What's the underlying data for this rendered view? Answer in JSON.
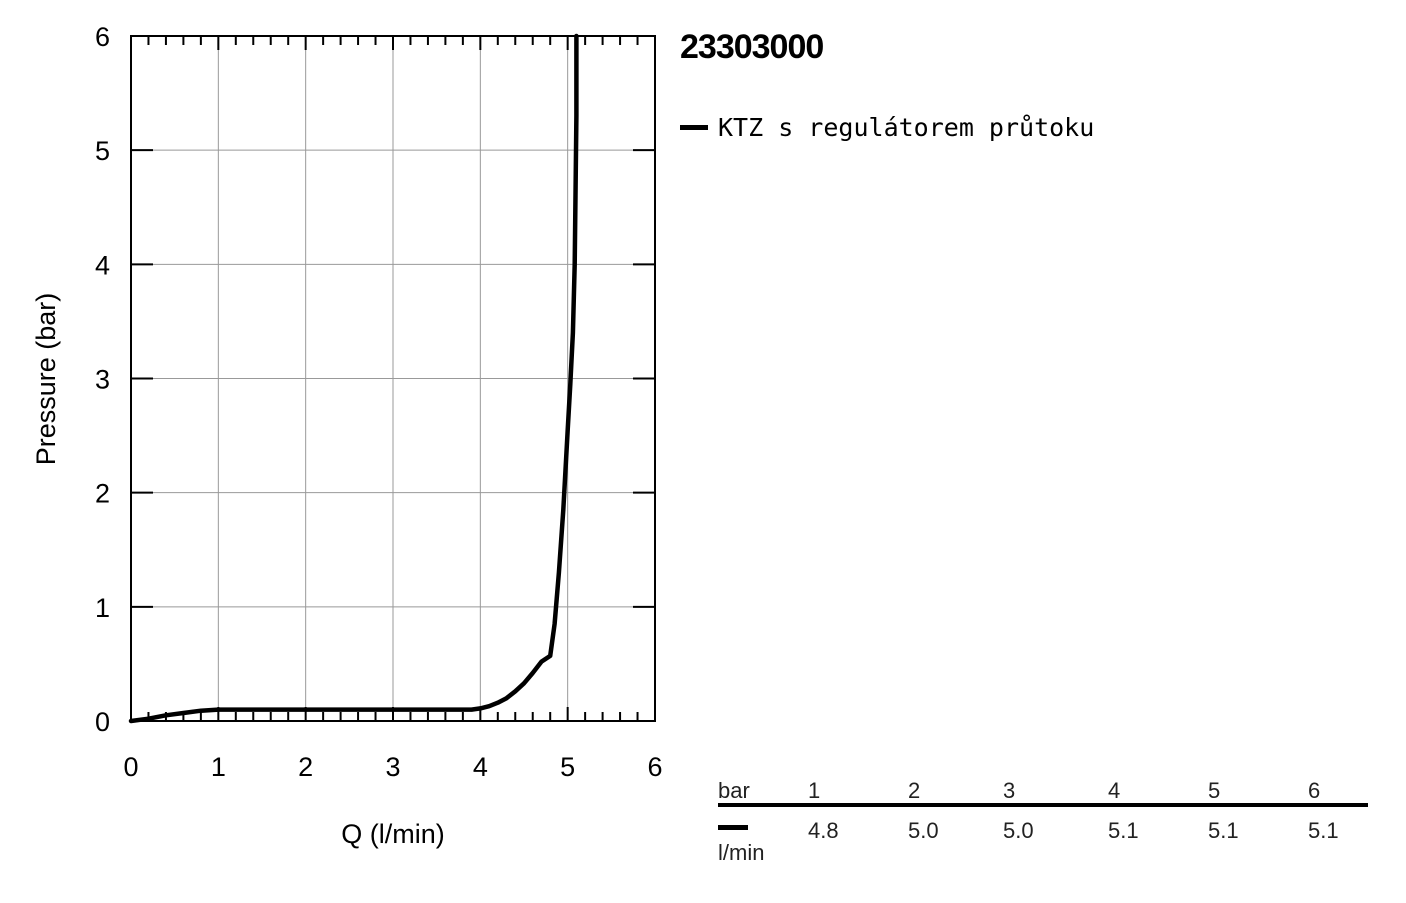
{
  "chart_data": {
    "type": "line",
    "xlabel": "Q (l/min)",
    "ylabel": "Pressure (bar)",
    "xlim": [
      0,
      6
    ],
    "ylim": [
      0,
      6
    ],
    "xticks": [
      "0",
      "1",
      "2",
      "3",
      "4",
      "5",
      "6"
    ],
    "yticks": [
      "0",
      "1",
      "2",
      "3",
      "4",
      "5",
      "6"
    ],
    "grid": true,
    "series": [
      {
        "name": "KTZ s regulátorem průtoku",
        "color": "#000000",
        "x": [
          0,
          0.2,
          0.4,
          0.6,
          0.8,
          1.0,
          2.0,
          3.0,
          3.9,
          4.0,
          4.1,
          4.2,
          4.3,
          4.4,
          4.5,
          4.6,
          4.7,
          4.8,
          4.85,
          4.9,
          4.95,
          5.0,
          5.03,
          5.06,
          5.08,
          5.09,
          5.1,
          5.1
        ],
        "y": [
          0,
          0.02,
          0.05,
          0.07,
          0.09,
          0.1,
          0.1,
          0.1,
          0.1,
          0.11,
          0.13,
          0.16,
          0.2,
          0.26,
          0.33,
          0.42,
          0.52,
          0.57,
          0.85,
          1.3,
          1.85,
          2.55,
          2.95,
          3.4,
          4.0,
          4.6,
          5.3,
          6.0
        ]
      }
    ]
  },
  "header": {
    "product_code": "23303000"
  },
  "legend": {
    "label": "KTZ s regulátorem průtoku"
  },
  "flow_table": {
    "pressure_label": "bar",
    "flow_unit": "l/min",
    "columns": [
      {
        "pressure": "1",
        "flow": "4.8"
      },
      {
        "pressure": "2",
        "flow": "5.0"
      },
      {
        "pressure": "3",
        "flow": "5.0"
      },
      {
        "pressure": "4",
        "flow": "5.1"
      },
      {
        "pressure": "5",
        "flow": "5.1"
      },
      {
        "pressure": "6",
        "flow": "5.1"
      }
    ]
  }
}
